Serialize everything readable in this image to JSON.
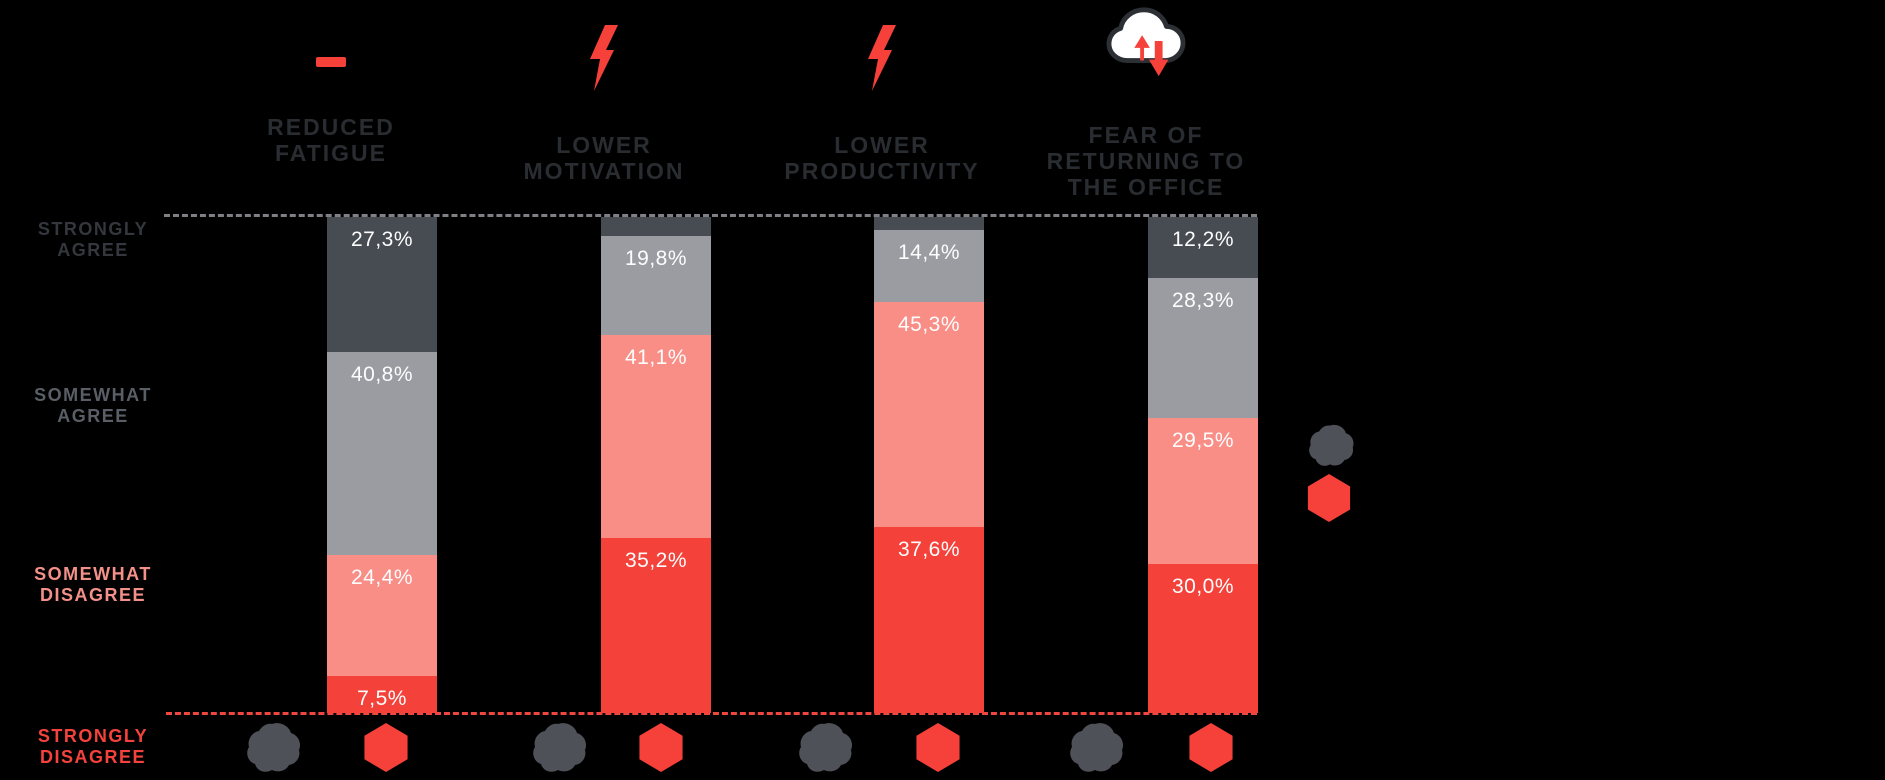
{
  "background": "#000000",
  "chart_data": {
    "type": "bar",
    "stacked": true,
    "orientation": "vertical",
    "value_format": "percent with decimal comma",
    "ylim": [
      0,
      100
    ],
    "gridlines": "dashed gray reference line at 100% (top), dashed red reference line at 0% (bottom)",
    "categories": [
      "REDUCED FATIGUE",
      "LOWER MOTIVATION",
      "LOWER PRODUCTIVITY",
      "FEAR OF RETURNING TO THE OFFICE"
    ],
    "category_title_lines": [
      [
        "REDUCED",
        "FATIGUE"
      ],
      [
        "LOWER",
        "MOTIVATION"
      ],
      [
        "LOWER",
        "PRODUCTIVITY"
      ],
      [
        "FEAR OF",
        "RETURNING TO",
        "THE OFFICE"
      ]
    ],
    "category_icons": [
      "minus-icon",
      "lightning-icon",
      "lightning-icon",
      "cloud-up-down-arrows-icon"
    ],
    "series": [
      {
        "name": "STRONGLY AGREE",
        "color": "#474b52",
        "values": [
          27.3,
          3.9,
          2.7,
          12.2
        ],
        "data_labels": [
          "27,3%",
          null,
          null,
          "12,2%"
        ]
      },
      {
        "name": "SOMEWHAT AGREE",
        "color": "#9a9ca1",
        "values": [
          40.8,
          19.8,
          14.4,
          28.3
        ],
        "data_labels": [
          "40,8%",
          "19,8%",
          "14,4%",
          "28,3%"
        ]
      },
      {
        "name": "SOMEWHAT DISAGREE",
        "color": "#f98e87",
        "values": [
          24.4,
          41.1,
          45.3,
          29.5
        ],
        "data_labels": [
          "24,4%",
          "41,1%",
          "45,3%",
          "29,5%"
        ]
      },
      {
        "name": "STRONGLY DISAGREE",
        "color": "#f4423a",
        "values": [
          7.5,
          35.2,
          37.6,
          30.0
        ],
        "data_labels": [
          "7,5%",
          "35,2%",
          "37,6%",
          "30,0%"
        ]
      }
    ],
    "row_labels": [
      {
        "lines": [
          "STRONGLY",
          "AGREE"
        ],
        "color": "#34373d"
      },
      {
        "lines": [
          "SOMEWHAT",
          "AGREE"
        ],
        "color": "#5a5e66"
      },
      {
        "lines": [
          "SOMEWHAT",
          "DISAGREE"
        ],
        "color": "#f4908a"
      },
      {
        "lines": [
          "STRONGLY",
          "DISAGREE"
        ],
        "color": "#f6423c"
      }
    ],
    "bottom_icons_per_category": [
      "blob-icon",
      "hexagon-icon"
    ],
    "legend": {
      "position": "right",
      "labels_visible": false,
      "items": [
        {
          "icon": "blob-icon",
          "color": "#4e5157"
        },
        {
          "icon": "hexagon-icon",
          "color": "#f6413b"
        }
      ]
    }
  },
  "accent_colors": {
    "red": "#f6413b",
    "dark_slate": "#474b52",
    "gray": "#9a9ca1",
    "salmon": "#f98e87",
    "top_rule": "#7e8084",
    "bottom_rule": "#ee4640",
    "title_text": "#292c30",
    "cloud_outline": "#2c2f34",
    "cloud_fill": "#ffffff"
  }
}
